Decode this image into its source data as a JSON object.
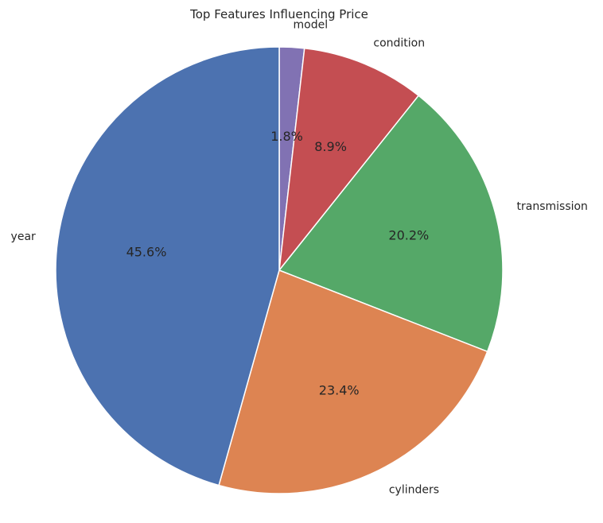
{
  "chart_data": {
    "type": "pie",
    "title": "Top Features Influencing Price",
    "slices": [
      {
        "label": "model",
        "value": 1.8,
        "pct_label": "1.8%",
        "color": "#8172b3"
      },
      {
        "label": "condition",
        "value": 8.9,
        "pct_label": "8.9%",
        "color": "#c44e52"
      },
      {
        "label": "transmission",
        "value": 20.2,
        "pct_label": "20.2%",
        "color": "#55a868"
      },
      {
        "label": "cylinders",
        "value": 23.4,
        "pct_label": "23.4%",
        "color": "#dd8452"
      },
      {
        "label": "year",
        "value": 45.6,
        "pct_label": "45.6%",
        "color": "#4c72b0"
      }
    ],
    "start": "top",
    "direction": "clockwise",
    "legend": "none"
  }
}
